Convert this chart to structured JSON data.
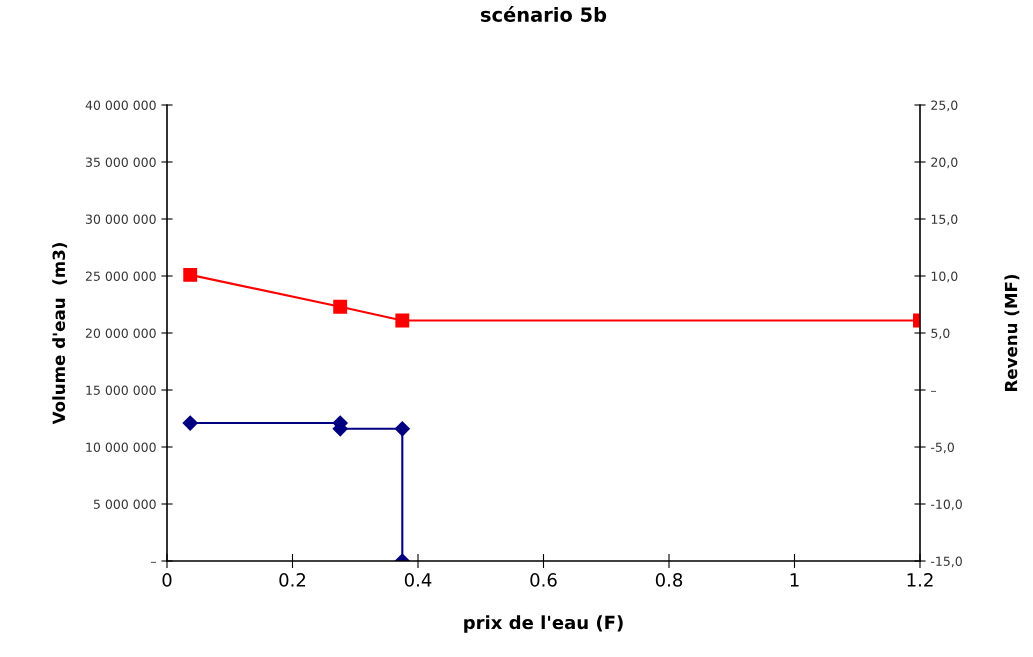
{
  "chart_data": {
    "type": "line",
    "title": "scénario 5b",
    "xlabel": "prix de l'eau (F)",
    "ylabel": "Volume d'eau  (m3)",
    "y2label": "Revenu (MF)",
    "xlim": [
      0,
      1.2
    ],
    "xticks": [
      0,
      0.2,
      0.4,
      0.6,
      0.8,
      1,
      1.2
    ],
    "ylim": [
      0,
      40000000
    ],
    "yticks": [
      {
        "value": 0,
        "label": "–"
      },
      {
        "value": 5000000,
        "label": "5 000 000"
      },
      {
        "value": 10000000,
        "label": "10 000 000"
      },
      {
        "value": 15000000,
        "label": "15 000 000"
      },
      {
        "value": 20000000,
        "label": "20 000 000"
      },
      {
        "value": 25000000,
        "label": "25 000 000"
      },
      {
        "value": 30000000,
        "label": "30 000 000"
      },
      {
        "value": 35000000,
        "label": "35 000 000"
      },
      {
        "value": 40000000,
        "label": "40 000 000"
      }
    ],
    "y2lim": [
      -15,
      25
    ],
    "y2ticks": [
      {
        "value": -15,
        "label": "-15,0"
      },
      {
        "value": -10,
        "label": "-10,0"
      },
      {
        "value": -5,
        "label": "-5,0"
      },
      {
        "value": 0,
        "label": "–"
      },
      {
        "value": 5,
        "label": "5,0"
      },
      {
        "value": 10,
        "label": "10,0"
      },
      {
        "value": 15,
        "label": "15,0"
      },
      {
        "value": 20,
        "label": "20,0"
      },
      {
        "value": 25,
        "label": "25,0"
      }
    ],
    "grid": false,
    "legend": false,
    "series": [
      {
        "color": "#000080",
        "marker": "diamond",
        "x": [
          0.037,
          0.276,
          0.276,
          0.375,
          0.375
        ],
        "values": [
          12100000,
          12100000,
          11600000,
          11600000,
          0
        ]
      },
      {
        "color": "#ff0000",
        "marker": "square",
        "axis": "y2",
        "x": [
          0.037,
          0.276,
          0.375,
          1.2
        ],
        "values": [
          10.1,
          7.3,
          6.1,
          6.1
        ]
      }
    ]
  }
}
